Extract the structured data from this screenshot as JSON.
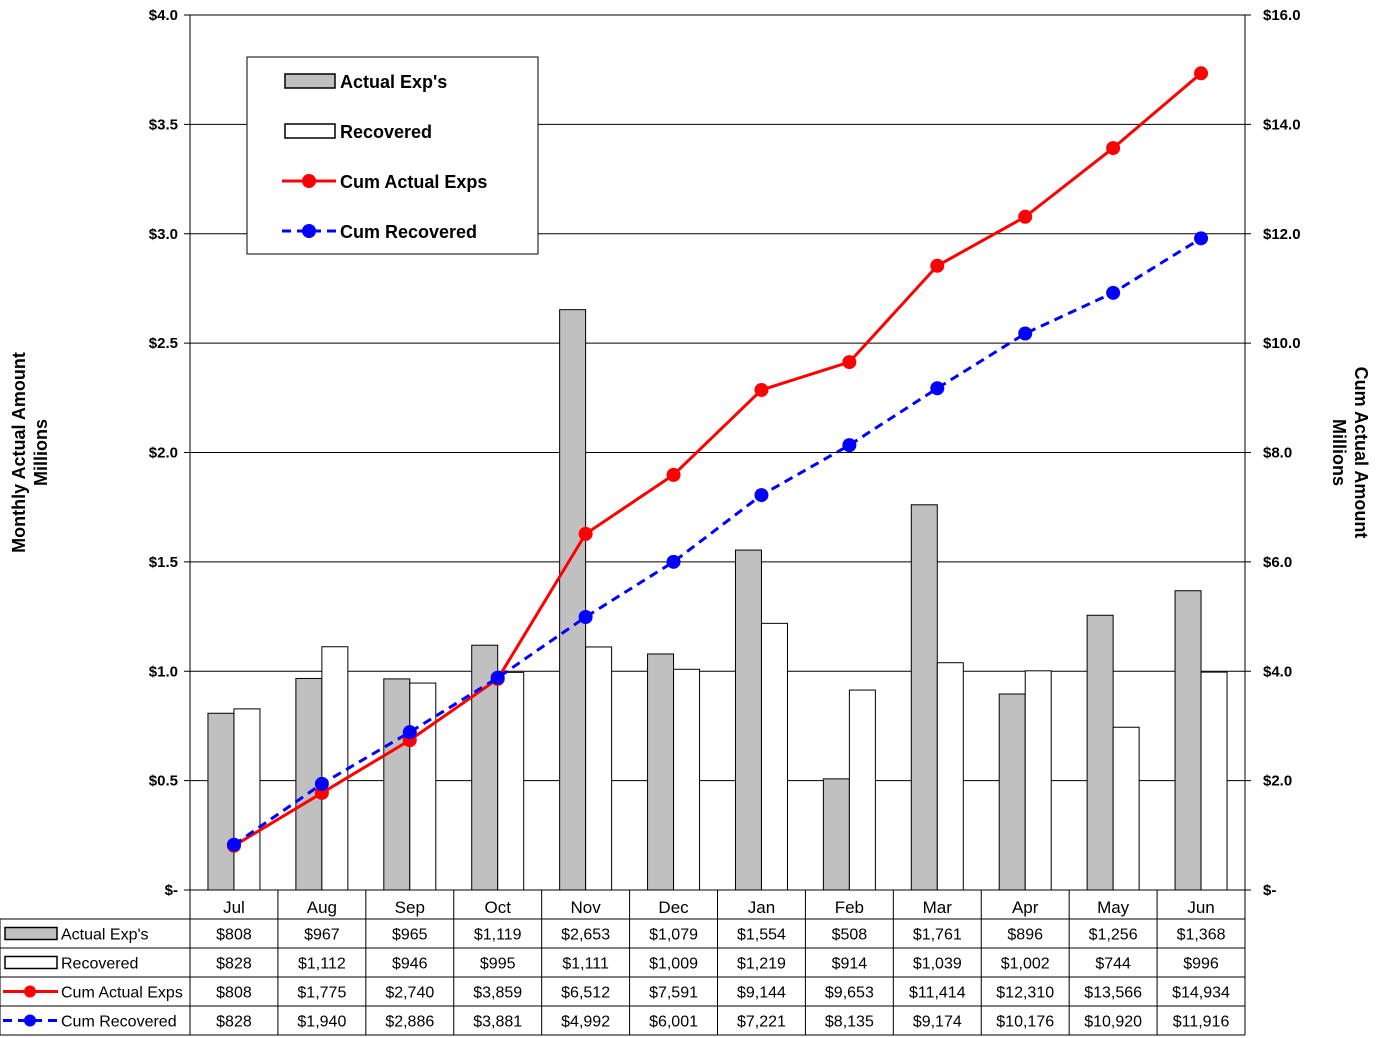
{
  "chart_data": {
    "type": "bar",
    "categories": [
      "Jul",
      "Aug",
      "Sep",
      "Oct",
      "Nov",
      "Dec",
      "Jan",
      "Feb",
      "Mar",
      "Apr",
      "May",
      "Jun"
    ],
    "ylabel": "Monthly Actual Amount\nMillions",
    "y2label": "Cum Actual Amount\nMillions",
    "ylim": [
      0,
      4.0
    ],
    "y2lim": [
      0,
      16.0
    ],
    "yticks": [
      "$-",
      "$0.5",
      "$1.0",
      "$1.5",
      "$2.0",
      "$2.5",
      "$3.0",
      "$3.5",
      "$4.0"
    ],
    "y2ticks": [
      "$-",
      "$2.0",
      "$4.0",
      "$6.0",
      "$8.0",
      "$10.0",
      "$12.0",
      "$14.0",
      "$16.0"
    ],
    "grid": true,
    "legend_position": "top-left",
    "series": [
      {
        "name": "Actual Exp's",
        "type": "bar",
        "axis": "left",
        "color": "#c0c0c0",
        "values": [
          808,
          967,
          965,
          1119,
          2653,
          1079,
          1554,
          508,
          1761,
          896,
          1256,
          1368
        ],
        "labels": [
          "$808",
          "$967",
          "$965",
          "$1,119",
          "$2,653",
          "$1,079",
          "$1,554",
          "$508",
          "$1,761",
          "$896",
          "$1,256",
          "$1,368"
        ]
      },
      {
        "name": "Recovered",
        "type": "bar",
        "axis": "left",
        "color": "#ffffff",
        "values": [
          828,
          1112,
          946,
          995,
          1111,
          1009,
          1219,
          914,
          1039,
          1002,
          744,
          996
        ],
        "labels": [
          "$828",
          "$1,112",
          "$946",
          "$995",
          "$1,111",
          "$1,009",
          "$1,219",
          "$914",
          "$1,039",
          "$1,002",
          "$744",
          "$996"
        ]
      },
      {
        "name": "Cum Actual Exps",
        "type": "line",
        "axis": "right",
        "color": "#ff0000",
        "dash": false,
        "values": [
          808,
          1775,
          2740,
          3859,
          6512,
          7591,
          9144,
          9653,
          11414,
          12310,
          13566,
          14934
        ],
        "labels": [
          "$808",
          "$1,775",
          "$2,740",
          "$3,859",
          "$6,512",
          "$7,591",
          "$9,144",
          "$9,653",
          "$11,414",
          "$12,310",
          "$13,566",
          "$14,934"
        ]
      },
      {
        "name": "Cum Recovered",
        "type": "line",
        "axis": "right",
        "color": "#0000ff",
        "dash": true,
        "values": [
          828,
          1940,
          2886,
          3881,
          4992,
          6001,
          7221,
          8135,
          9174,
          10176,
          10920,
          11916
        ],
        "labels": [
          "$828",
          "$1,940",
          "$2,886",
          "$3,881",
          "$4,992",
          "$6,001",
          "$7,221",
          "$8,135",
          "$9,174",
          "$10,176",
          "$10,920",
          "$11,916"
        ]
      }
    ]
  }
}
